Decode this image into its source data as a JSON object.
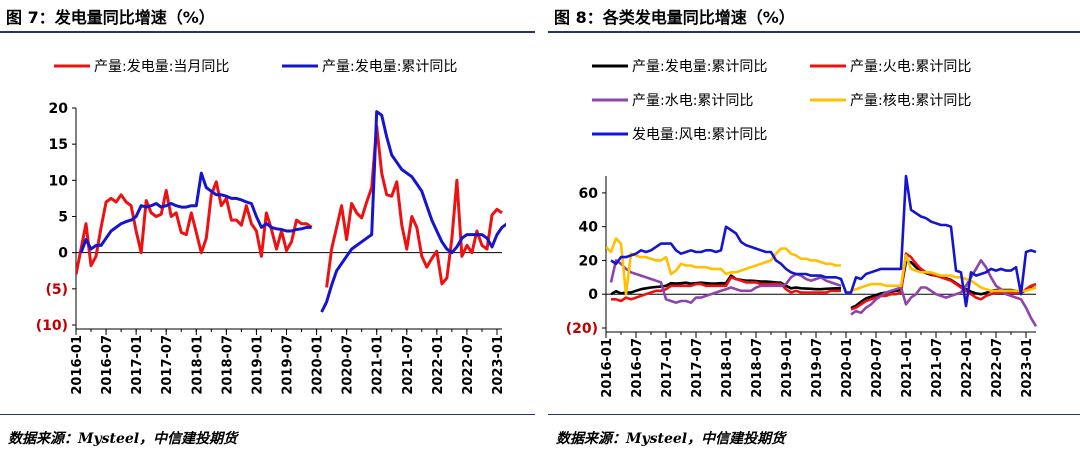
{
  "left": {
    "title": "图 7：发电量同比增速（%）",
    "source": "数据来源：Mysteel，中信建投期货"
  },
  "right": {
    "title": "图 8：各类发电量同比增速（%）",
    "source": "数据来源：Mysteel，中信建投期货"
  },
  "colors": {
    "red": "#ee1111",
    "blue": "#1515d0",
    "black": "#000000",
    "purple": "#8e44ad",
    "yellow": "#ffc000",
    "rule": "#1f3864"
  },
  "chart_data": [
    {
      "type": "line",
      "title": "图 7：发电量同比增速（%）",
      "ylim": [
        -10,
        20
      ],
      "ytick_labels": [
        "20",
        "15",
        "10",
        "5",
        "0",
        "(5)",
        "(10)"
      ],
      "ytick_values": [
        20,
        15,
        10,
        5,
        0,
        -5,
        -10
      ],
      "x_start": "2016-01",
      "xtick_labels": [
        "2016-01",
        "2016-07",
        "2017-01",
        "2017-07",
        "2018-01",
        "2018-07",
        "2019-01",
        "2019-07",
        "2020-01",
        "2020-07",
        "2021-01",
        "2021-07",
        "2022-01",
        "2022-07",
        "2023-01"
      ],
      "legend_position": "top",
      "grid": false,
      "series": [
        {
          "name": "产量:发电量:当月同比",
          "color": "#ee1111",
          "values": [
            -3.0,
            0.5,
            4.0,
            -1.8,
            -0.5,
            3.5,
            7.0,
            7.5,
            7.0,
            8.0,
            7.0,
            6.5,
            3.0,
            0.0,
            7.2,
            5.5,
            5.0,
            5.3,
            8.6,
            5.0,
            5.5,
            2.8,
            2.5,
            5.5,
            2.8,
            0.0,
            2.0,
            8.0,
            9.8,
            6.5,
            7.5,
            4.5,
            4.5,
            3.8,
            6.5,
            4.0,
            3.0,
            -0.5,
            5.5,
            3.2,
            0.5,
            3.0,
            0.3,
            1.5,
            4.5,
            4.0,
            4.0,
            3.5,
            null,
            null,
            -4.8,
            0.5,
            3.5,
            6.5,
            1.8,
            6.8,
            5.5,
            4.8,
            7.0,
            9.0,
            17.5,
            11.0,
            8.0,
            7.8,
            9.8,
            3.8,
            0.5,
            5.0,
            3.5,
            -0.5,
            -2.0,
            -0.8,
            0.2,
            -4.3,
            -3.5,
            2.0,
            10.0,
            -0.5,
            1.0,
            0.0,
            3.0,
            1.0,
            0.5,
            5.2,
            6.0,
            5.5
          ]
        },
        {
          "name": "产量:发电量:累计同比",
          "color": "#1515d0",
          "values": [
            null,
            0.0,
            1.8,
            0.5,
            1.0,
            1.0,
            2.0,
            3.0,
            3.5,
            4.0,
            4.3,
            4.5,
            5.0,
            6.5,
            6.3,
            6.5,
            6.8,
            6.3,
            6.5,
            6.8,
            6.5,
            6.3,
            6.3,
            6.5,
            6.5,
            11.0,
            9.0,
            8.5,
            8.0,
            8.0,
            7.8,
            7.5,
            7.5,
            7.3,
            7.0,
            6.8,
            5.0,
            3.5,
            4.0,
            3.5,
            3.3,
            3.2,
            3.0,
            3.0,
            3.2,
            3.3,
            3.5,
            3.5,
            null,
            -8.2,
            -6.8,
            -4.5,
            -2.5,
            -1.5,
            -0.5,
            0.5,
            1.0,
            1.5,
            2.0,
            2.5,
            19.5,
            19.0,
            16.0,
            13.5,
            12.5,
            11.5,
            11.0,
            10.5,
            9.5,
            8.5,
            6.5,
            4.5,
            3.0,
            1.5,
            0.5,
            0.0,
            0.8,
            2.0,
            2.5,
            2.5,
            2.5,
            2.5,
            2.0,
            0.8,
            2.5,
            3.5,
            4.0
          ]
        }
      ]
    },
    {
      "type": "line",
      "title": "图 8：各类发电量同比增速（%）",
      "ylim": [
        -20,
        70
      ],
      "ytick_labels": [
        "60",
        "40",
        "20",
        "0",
        "(20)"
      ],
      "ytick_values": [
        60,
        40,
        20,
        0,
        -20
      ],
      "x_start": "2016-01",
      "xtick_labels": [
        "2016-01",
        "2016-07",
        "2017-01",
        "2017-07",
        "2018-01",
        "2018-07",
        "2019-01",
        "2019-07",
        "2020-01",
        "2020-07",
        "2021-01",
        "2021-07",
        "2022-01",
        "2022-07",
        "2023-01"
      ],
      "legend_position": "top",
      "grid": false,
      "series": [
        {
          "name": "产量:发电量:累计同比",
          "color": "#000000",
          "values": [
            null,
            0.0,
            1.8,
            0.5,
            1.0,
            1.0,
            2.0,
            3.0,
            3.5,
            4.0,
            4.3,
            4.5,
            5.0,
            6.5,
            6.3,
            6.5,
            6.8,
            6.3,
            6.5,
            6.8,
            6.5,
            6.3,
            6.3,
            6.5,
            6.5,
            11.0,
            9.0,
            8.5,
            8.0,
            8.0,
            7.8,
            7.5,
            7.5,
            7.3,
            7.0,
            6.8,
            5.0,
            3.5,
            4.0,
            3.5,
            3.3,
            3.2,
            3.0,
            3.0,
            3.2,
            3.3,
            3.5,
            3.5,
            null,
            -8.2,
            -6.8,
            -4.5,
            -2.5,
            -1.5,
            -0.5,
            0.5,
            1.0,
            1.5,
            2.0,
            2.5,
            19.5,
            19.0,
            16.0,
            13.5,
            12.5,
            11.5,
            11.0,
            10.5,
            9.5,
            8.5,
            6.5,
            4.5,
            3.0,
            1.5,
            0.5,
            0.0,
            0.8,
            2.0,
            2.5,
            2.5,
            2.5,
            2.5,
            2.0,
            0.8,
            2.5,
            3.5,
            4.0
          ]
        },
        {
          "name": "产量:火电:累计同比",
          "color": "#ee1111",
          "values": [
            null,
            -3,
            -3,
            -4,
            -2,
            -3,
            -2,
            -1,
            0,
            1,
            2,
            2,
            3,
            5,
            5,
            5,
            5,
            5,
            6,
            6,
            5,
            5,
            5,
            5,
            5,
            10,
            9,
            8,
            7,
            7,
            7,
            6,
            6,
            6,
            6,
            6,
            3,
            1,
            2,
            1,
            1,
            1,
            1,
            1,
            1,
            2,
            2,
            2,
            null,
            -9,
            -8,
            -6,
            -4,
            -3,
            -2,
            -1,
            -1,
            0,
            0,
            1,
            24,
            22,
            18,
            15,
            13,
            12,
            11,
            10,
            9,
            8,
            6,
            4,
            2,
            0,
            -2,
            -3,
            -1,
            0,
            1,
            1,
            1,
            1,
            1,
            1,
            3,
            5,
            6
          ]
        },
        {
          "name": "产量:水电:累计同比",
          "color": "#8e44ad",
          "values": [
            null,
            7,
            20,
            18,
            15,
            13,
            12,
            11,
            10,
            9,
            8,
            7,
            -3,
            -4,
            -5,
            -4,
            -4,
            -5,
            -2,
            -2,
            -1,
            0,
            1,
            2,
            3,
            4,
            3,
            2,
            2,
            2,
            4,
            5,
            5,
            5,
            5,
            5,
            6,
            10,
            12,
            11,
            9,
            8,
            9,
            10,
            8,
            7,
            6,
            5,
            null,
            -12,
            -10,
            -11,
            -8,
            -6,
            -3,
            -1,
            1,
            2,
            3,
            4,
            -6,
            -2,
            0,
            4,
            4,
            2,
            0,
            -1,
            -2,
            -1,
            0,
            1,
            5,
            10,
            15,
            20,
            16,
            10,
            5,
            3,
            0,
            -1,
            -2,
            -3,
            -8,
            -14,
            -19
          ]
        },
        {
          "name": "产量:核电:累计同比",
          "color": "#ffc000",
          "values": [
            28,
            25,
            33,
            30,
            0,
            24,
            23,
            22,
            22,
            21,
            20,
            20,
            22,
            12,
            14,
            18,
            17,
            17,
            16,
            16,
            16,
            15,
            15,
            15,
            12,
            13,
            13,
            14,
            15,
            16,
            17,
            18,
            19,
            20,
            24,
            27,
            27,
            24,
            23,
            21,
            21,
            20,
            20,
            19,
            18,
            18,
            17,
            17,
            null,
            2,
            3,
            4,
            5,
            6,
            6,
            6,
            5,
            5,
            5,
            5,
            23,
            15,
            14,
            13,
            13,
            13,
            12,
            11,
            11,
            11,
            10,
            10,
            9,
            8,
            6,
            4,
            3,
            2,
            2,
            2,
            2,
            2,
            2,
            2,
            2,
            3,
            4
          ]
        },
        {
          "name": "发电量:风电:累计同比",
          "color": "#1515d0",
          "values": [
            null,
            20,
            18,
            22,
            22,
            23,
            24,
            26,
            25,
            26,
            28,
            30,
            30,
            30,
            26,
            24,
            25,
            26,
            25,
            25,
            26,
            26,
            25,
            26,
            40,
            38,
            36,
            31,
            29,
            28,
            27,
            26,
            25,
            25,
            20,
            18,
            15,
            13,
            12,
            12,
            12,
            11,
            11,
            11,
            10,
            10,
            10,
            9,
            1,
            1,
            10,
            9,
            12,
            13,
            14,
            15,
            15,
            15,
            15,
            15,
            70,
            50,
            48,
            46,
            45,
            43,
            42,
            41,
            41,
            40,
            14,
            13,
            -7,
            13,
            11,
            12,
            13,
            15,
            14,
            15,
            14,
            14,
            16,
            0,
            25,
            26,
            25
          ]
        }
      ]
    }
  ]
}
